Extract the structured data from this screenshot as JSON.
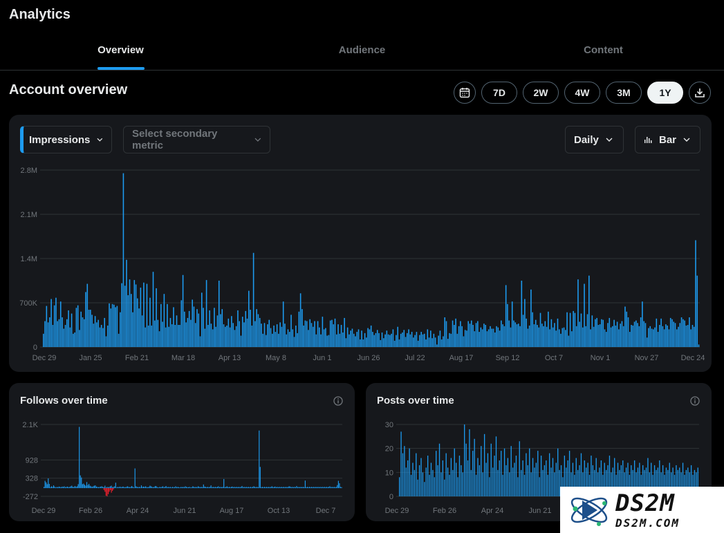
{
  "page": {
    "title": "Analytics"
  },
  "tabs": [
    {
      "label": "Overview",
      "active": true
    },
    {
      "label": "Audience",
      "active": false
    },
    {
      "label": "Content",
      "active": false
    }
  ],
  "overview": {
    "title": "Account overview",
    "ranges": [
      "7D",
      "2W",
      "4W",
      "3M",
      "1Y"
    ],
    "selected_range": "1Y"
  },
  "controls": {
    "primary_metric": "Impressions",
    "secondary_placeholder": "Select secondary metric",
    "interval": "Daily",
    "chart_kind": "Bar"
  },
  "cards": {
    "follows_title": "Follows over time",
    "posts_title": "Posts over time"
  },
  "colors": {
    "accent": "#1d9bf0",
    "negative": "#f4212e",
    "card": "#16181c"
  },
  "watermark": {
    "big": "DS2M",
    "small": "DS2M.COM"
  },
  "chart_data": [
    {
      "name": "impressions",
      "type": "bar",
      "ylim": [
        0,
        2800000
      ],
      "y_ticks": [
        0,
        700000,
        1400000,
        2100000,
        2800000
      ],
      "y_tick_labels": [
        "0",
        "700K",
        "1.4M",
        "2.1M",
        "2.8M"
      ],
      "x_labels": [
        "Dec 29",
        "Jan 25",
        "Feb 21",
        "Mar 18",
        "Apr 13",
        "May 8",
        "Jun 1",
        "Jun 26",
        "Jul 22",
        "Aug 17",
        "Sep 12",
        "Oct 7",
        "Nov 1",
        "Nov 27",
        "Dec 24"
      ],
      "values": [
        210000,
        410000,
        650000,
        390000,
        470000,
        760000,
        350000,
        660000,
        780000,
        410000,
        440000,
        720000,
        470000,
        290000,
        350000,
        440000,
        580000,
        310000,
        530000,
        210000,
        230000,
        620000,
        660000,
        270000,
        560000,
        470000,
        440000,
        870000,
        1000000,
        590000,
        590000,
        510000,
        370000,
        490000,
        390000,
        430000,
        310000,
        350000,
        300000,
        460000,
        170000,
        340000,
        690000,
        610000,
        680000,
        670000,
        630000,
        650000,
        210000,
        550000,
        1010000,
        2750000,
        970000,
        1380000,
        820000,
        1070000,
        840000,
        550000,
        1060000,
        990000,
        770000,
        610000,
        940000,
        500000,
        1020000,
        310000,
        1000000,
        340000,
        780000,
        340000,
        1190000,
        420000,
        930000,
        430000,
        250000,
        680000,
        400000,
        840000,
        310000,
        680000,
        320000,
        460000,
        360000,
        630000,
        350000,
        500000,
        350000,
        350000,
        740000,
        1140000,
        560000,
        390000,
        460000,
        570000,
        430000,
        750000,
        640000,
        380000,
        600000,
        530000,
        170000,
        860000,
        620000,
        290000,
        1060000,
        350000,
        580000,
        370000,
        280000,
        620000,
        320000,
        500000,
        1050000,
        520000,
        600000,
        360000,
        320000,
        340000,
        450000,
        310000,
        490000,
        380000,
        270000,
        330000,
        580000,
        410000,
        180000,
        480000,
        390000,
        570000,
        450000,
        890000,
        590000,
        340000,
        1490000,
        410000,
        600000,
        520000,
        460000,
        370000,
        210000,
        380000,
        190000,
        360000,
        430000,
        300000,
        210000,
        340000,
        240000,
        360000,
        210000,
        390000,
        320000,
        720000,
        370000,
        200000,
        280000,
        240000,
        510000,
        280000,
        160000,
        340000,
        220000,
        560000,
        850000,
        600000,
        340000,
        420000,
        410000,
        270000,
        440000,
        380000,
        320000,
        410000,
        200000,
        410000,
        310000,
        200000,
        480000,
        280000,
        300000,
        180000,
        190000,
        420000,
        430000,
        360000,
        450000,
        200000,
        360000,
        210000,
        350000,
        230000,
        460000,
        140000,
        310000,
        200000,
        260000,
        290000,
        210000,
        170000,
        240000,
        280000,
        120000,
        260000,
        120000,
        220000,
        150000,
        300000,
        280000,
        340000,
        240000,
        190000,
        220000,
        270000,
        220000,
        110000,
        230000,
        140000,
        200000,
        260000,
        200000,
        190000,
        210000,
        280000,
        100000,
        190000,
        320000,
        120000,
        210000,
        230000,
        270000,
        160000,
        220000,
        280000,
        200000,
        240000,
        150000,
        190000,
        240000,
        100000,
        190000,
        240000,
        200000,
        210000,
        120000,
        280000,
        150000,
        260000,
        140000,
        210000,
        150000,
        40000,
        180000,
        260000,
        120000,
        170000,
        470000,
        410000,
        130000,
        220000,
        210000,
        420000,
        350000,
        450000,
        210000,
        330000,
        410000,
        330000,
        170000,
        270000,
        260000,
        410000,
        370000,
        420000,
        350000,
        250000,
        380000,
        410000,
        240000,
        310000,
        280000,
        370000,
        350000,
        250000,
        280000,
        330000,
        290000,
        290000,
        230000,
        330000,
        310000,
        260000,
        420000,
        360000,
        330000,
        980000,
        680000,
        420000,
        310000,
        720000,
        420000,
        390000,
        360000,
        370000,
        330000,
        1050000,
        510000,
        760000,
        450000,
        290000,
        340000,
        910000,
        550000,
        360000,
        430000,
        350000,
        310000,
        540000,
        370000,
        330000,
        410000,
        320000,
        560000,
        280000,
        440000,
        310000,
        380000,
        260000,
        450000,
        280000,
        210000,
        300000,
        310000,
        270000,
        550000,
        180000,
        540000,
        250000,
        570000,
        540000,
        330000,
        1070000,
        400000,
        530000,
        310000,
        1000000,
        330000,
        520000,
        1130000,
        280000,
        500000,
        320000,
        440000,
        460000,
        350000,
        360000,
        440000,
        430000,
        280000,
        240000,
        380000,
        460000,
        310000,
        330000,
        430000,
        340000,
        400000,
        280000,
        370000,
        410000,
        330000,
        640000,
        560000,
        470000,
        240000,
        350000,
        340000,
        400000,
        420000,
        380000,
        330000,
        470000,
        720000,
        410000,
        380000,
        150000,
        300000,
        330000,
        290000,
        280000,
        310000,
        450000,
        240000,
        350000,
        450000,
        330000,
        280000,
        360000,
        340000,
        280000,
        460000,
        440000,
        400000,
        380000,
        280000,
        320000,
        380000,
        470000,
        440000,
        420000,
        340000,
        350000,
        470000,
        280000,
        350000,
        320000,
        1690000,
        1130000,
        40000
      ]
    },
    {
      "name": "follows",
      "type": "bar",
      "ylim": [
        -272,
        2100
      ],
      "y_ticks": [
        -272,
        328,
        928,
        2100
      ],
      "y_tick_labels": [
        "-272",
        "328",
        "928",
        "2.1K"
      ],
      "x_labels": [
        "Dec 29",
        "Feb 26",
        "Apr 24",
        "Jun 21",
        "Aug 17",
        "Oct 13",
        "Dec 7"
      ],
      "values": [
        40,
        240,
        190,
        130,
        320,
        140,
        30,
        60,
        40,
        90,
        50,
        20,
        40,
        30,
        50,
        40,
        30,
        50,
        40,
        60,
        30,
        40,
        50,
        30,
        40,
        60,
        80,
        40,
        40,
        70,
        40,
        60,
        130,
        2020,
        420,
        350,
        130,
        150,
        110,
        80,
        200,
        100,
        140,
        80,
        60,
        40,
        60,
        80,
        90,
        50,
        40,
        30,
        40,
        50,
        60,
        40,
        30,
        80,
        20,
        40,
        30,
        40,
        60,
        80,
        30,
        40,
        60,
        180,
        20,
        40,
        30,
        50,
        30,
        40,
        50,
        30,
        30,
        40,
        60,
        40,
        30,
        40,
        70,
        40,
        20,
        650,
        60,
        40,
        30,
        40,
        30,
        90,
        40,
        50,
        40,
        60,
        30,
        30,
        40,
        80,
        60,
        40,
        30,
        40,
        70,
        60,
        30,
        20,
        40,
        30,
        40,
        60,
        30,
        40,
        70,
        30,
        40,
        30,
        40,
        20,
        40,
        30,
        30,
        60,
        30,
        40,
        30,
        20,
        40,
        30,
        40,
        30,
        60,
        40,
        30,
        30,
        40,
        20,
        30,
        60,
        40,
        30,
        40,
        30,
        60,
        40,
        30,
        40,
        30,
        120,
        50,
        40,
        30,
        40,
        30,
        40,
        90,
        30,
        40,
        30,
        40,
        30,
        40,
        60,
        30,
        40,
        30,
        40,
        300,
        30,
        40,
        60,
        30,
        40,
        30,
        40,
        50,
        30,
        40,
        30,
        40,
        30,
        40,
        30,
        40,
        70,
        30,
        40,
        30,
        40,
        30,
        40,
        30,
        40,
        30,
        40,
        60,
        40,
        30,
        40,
        30,
        1900,
        700,
        30,
        40,
        30,
        40,
        30,
        40,
        30,
        40,
        30,
        40,
        60,
        30,
        40,
        50,
        30,
        40,
        30,
        40,
        30,
        40,
        30,
        40,
        30,
        40,
        30,
        40,
        60,
        50,
        30,
        40,
        30,
        40,
        30,
        70,
        30,
        40,
        30,
        40,
        30,
        40,
        30,
        250,
        30,
        40,
        30,
        40,
        30,
        40,
        30,
        40,
        30,
        40,
        30,
        40,
        30,
        40,
        30,
        40,
        30,
        40,
        30,
        40,
        30,
        40,
        60,
        30,
        40,
        30,
        40,
        30,
        40,
        100,
        240,
        160,
        40,
        30
      ],
      "negative_values": [
        -60,
        -120,
        -250,
        -272,
        -200,
        -120,
        -60,
        -150,
        -90,
        -40
      ]
    },
    {
      "name": "posts",
      "type": "bar",
      "ylim": [
        0,
        30
      ],
      "y_ticks": [
        0,
        10,
        20,
        30
      ],
      "y_tick_labels": [
        "0",
        "10",
        "20",
        "30"
      ],
      "x_labels": [
        "Dec 29",
        "Feb 26",
        "Apr 24",
        "Jun 21"
      ],
      "values": [
        8,
        27,
        18,
        21,
        12,
        15,
        20,
        9,
        14,
        11,
        18,
        7,
        13,
        16,
        10,
        6,
        12,
        17,
        9,
        14,
        11,
        8,
        19,
        13,
        22,
        10,
        15,
        7,
        18,
        12,
        9,
        16,
        11,
        20,
        14,
        8,
        17,
        13,
        10,
        30,
        22,
        15,
        28,
        11,
        19,
        24,
        9,
        16,
        13,
        21,
        10,
        26,
        14,
        18,
        8,
        22,
        12,
        17,
        25,
        11,
        15,
        19,
        9,
        20,
        13,
        16,
        10,
        21,
        12,
        14,
        17,
        8,
        23,
        11,
        15,
        9,
        18,
        13,
        20,
        10,
        16,
        12,
        14,
        19,
        8,
        17,
        11,
        13,
        15,
        9,
        18,
        12,
        16,
        10,
        14,
        20,
        11,
        13,
        8,
        17,
        12,
        15,
        19,
        10,
        14,
        9,
        16,
        11,
        13,
        18,
        10,
        15,
        12,
        14,
        9,
        17,
        13,
        11,
        16,
        10,
        12,
        15,
        9,
        14,
        11,
        13,
        17,
        10,
        12,
        16,
        9,
        14,
        11,
        13,
        15,
        10,
        12,
        14,
        9,
        13,
        11,
        15,
        10,
        12,
        14,
        9,
        13,
        11,
        12,
        16,
        10,
        14,
        9,
        13,
        11,
        12,
        15,
        10,
        13,
        9,
        12,
        11,
        14,
        10,
        12,
        9,
        13,
        11,
        12,
        10,
        14,
        9,
        11,
        12,
        10,
        13,
        9,
        11,
        10,
        12
      ]
    }
  ]
}
